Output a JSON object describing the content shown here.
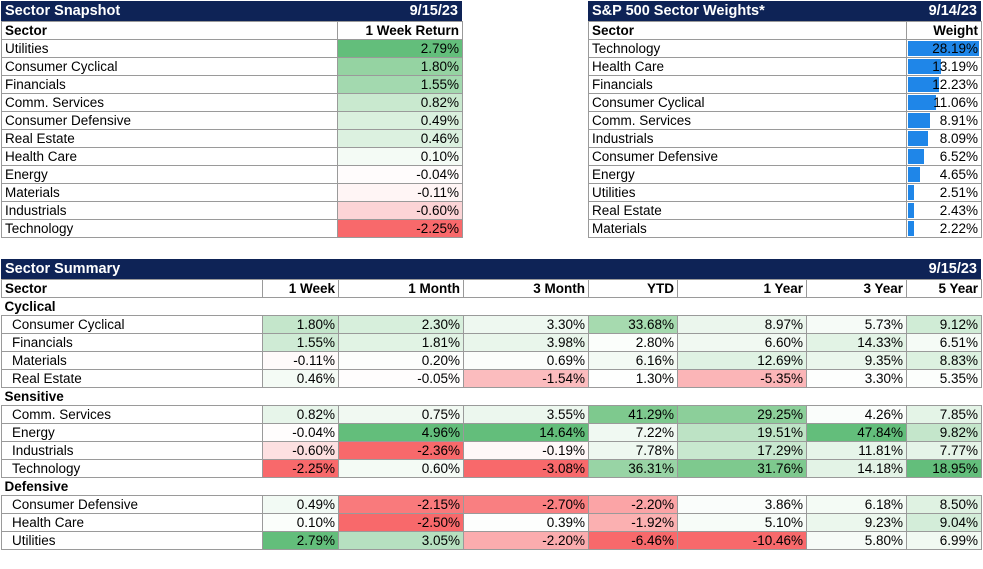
{
  "snapshot": {
    "title": "Sector Snapshot",
    "date": "9/15/23",
    "col_sector": "Sector",
    "col_return": "1 Week Return",
    "rows": [
      {
        "sector": "Utilities",
        "ret": "2.79%",
        "color": "#63be7b"
      },
      {
        "sector": "Consumer Cyclical",
        "ret": "1.80%",
        "color": "#95d3a2"
      },
      {
        "sector": "Financials",
        "ret": "1.55%",
        "color": "#a3d9af"
      },
      {
        "sector": "Comm. Services",
        "ret": "0.82%",
        "color": "#c9e9cf"
      },
      {
        "sector": "Consumer Defensive",
        "ret": "0.49%",
        "color": "#daf0de"
      },
      {
        "sector": "Real Estate",
        "ret": "0.46%",
        "color": "#dcf1e0"
      },
      {
        "sector": "Health Care",
        "ret": "0.10%",
        "color": "#f4fbf5"
      },
      {
        "sector": "Energy",
        "ret": "-0.04%",
        "color": "#fffcfc"
      },
      {
        "sector": "Materials",
        "ret": "-0.11%",
        "color": "#fff5f5"
      },
      {
        "sector": "Industrials",
        "ret": "-0.60%",
        "color": "#fcd4d6"
      },
      {
        "sector": "Technology",
        "ret": "-2.25%",
        "color": "#f8696b"
      }
    ]
  },
  "weights": {
    "title": "S&P 500 Sector Weights*",
    "date": "9/14/23",
    "col_sector": "Sector",
    "col_weight": "Weight",
    "bar_color": "#1f86e8",
    "rows": [
      {
        "sector": "Technology",
        "weight": "28.19%",
        "value": 28.19
      },
      {
        "sector": "Health Care",
        "weight": "13.19%",
        "value": 13.19
      },
      {
        "sector": "Financials",
        "weight": "12.23%",
        "value": 12.23
      },
      {
        "sector": "Consumer Cyclical",
        "weight": "11.06%",
        "value": 11.06
      },
      {
        "sector": "Comm. Services",
        "weight": "8.91%",
        "value": 8.91
      },
      {
        "sector": "Industrials",
        "weight": "8.09%",
        "value": 8.09
      },
      {
        "sector": "Consumer Defensive",
        "weight": "6.52%",
        "value": 6.52
      },
      {
        "sector": "Energy",
        "weight": "4.65%",
        "value": 4.65
      },
      {
        "sector": "Utilities",
        "weight": "2.51%",
        "value": 2.51
      },
      {
        "sector": "Real Estate",
        "weight": "2.43%",
        "value": 2.43
      },
      {
        "sector": "Materials",
        "weight": "2.22%",
        "value": 2.22
      }
    ]
  },
  "summary": {
    "title": "Sector Summary",
    "date": "9/15/23",
    "headers": [
      "Sector",
      "1 Week",
      "1 Month",
      "3 Month",
      "YTD",
      "1 Year",
      "3 Year",
      "5 Year"
    ],
    "groups": [
      {
        "name": "Cyclical",
        "rows": [
          {
            "sector": "Consumer Cyclical",
            "cells": [
              {
                "v": "1.80%",
                "c": "#c4e6cb"
              },
              {
                "v": "2.30%",
                "c": "#d7efdc"
              },
              {
                "v": "3.30%",
                "c": "#eef8f0"
              },
              {
                "v": "33.68%",
                "c": "#a6daaf"
              },
              {
                "v": "8.97%",
                "c": "#ebf6ed"
              },
              {
                "v": "5.73%",
                "c": "#f6fbf7"
              },
              {
                "v": "9.12%",
                "c": "#d0ecd6"
              }
            ]
          },
          {
            "sector": "Financials",
            "cells": [
              {
                "v": "1.55%",
                "c": "#cfebd5"
              },
              {
                "v": "1.81%",
                "c": "#e1f3e4"
              },
              {
                "v": "3.98%",
                "c": "#e9f6eb"
              },
              {
                "v": "2.80%",
                "c": "#fbfefb"
              },
              {
                "v": "6.60%",
                "c": "#f1f9f2"
              },
              {
                "v": "14.33%",
                "c": "#e2f3e5"
              },
              {
                "v": "6.51%",
                "c": "#f5fbf6"
              }
            ]
          },
          {
            "sector": "Materials",
            "cells": [
              {
                "v": "-0.11%",
                "c": "#fffafa"
              },
              {
                "v": "0.20%",
                "c": "#fcfefc"
              },
              {
                "v": "0.69%",
                "c": "#fbfdfb"
              },
              {
                "v": "6.16%",
                "c": "#f3faf4"
              },
              {
                "v": "12.69%",
                "c": "#dff2e3"
              },
              {
                "v": "9.35%",
                "c": "#eaf6ec"
              },
              {
                "v": "8.83%",
                "c": "#dcf1e0"
              }
            ]
          },
          {
            "sector": "Real Estate",
            "cells": [
              {
                "v": "0.46%",
                "c": "#f4fbf5"
              },
              {
                "v": "-0.05%",
                "c": "#fffdfd"
              },
              {
                "v": "-1.54%",
                "c": "#fbbcbe"
              },
              {
                "v": "1.30%",
                "c": "#fefffe"
              },
              {
                "v": "-5.35%",
                "c": "#fbb5b7"
              },
              {
                "v": "3.30%",
                "c": "#fdfefd"
              },
              {
                "v": "5.35%",
                "c": "#fcfefc"
              }
            ]
          }
        ]
      },
      {
        "name": "Sensitive",
        "rows": [
          {
            "sector": "Comm. Services",
            "cells": [
              {
                "v": "0.82%",
                "c": "#e7f5ea"
              },
              {
                "v": "0.75%",
                "c": "#f1f9f2"
              },
              {
                "v": "3.55%",
                "c": "#ecf7ee"
              },
              {
                "v": "41.29%",
                "c": "#7ec98e"
              },
              {
                "v": "29.25%",
                "c": "#8ccf9a"
              },
              {
                "v": "4.26%",
                "c": "#fafdfb"
              },
              {
                "v": "7.85%",
                "c": "#e4f4e7"
              }
            ]
          },
          {
            "sector": "Energy",
            "cells": [
              {
                "v": "-0.04%",
                "c": "#fffdfd"
              },
              {
                "v": "4.96%",
                "c": "#63be7b"
              },
              {
                "v": "14.64%",
                "c": "#63be7b"
              },
              {
                "v": "7.22%",
                "c": "#f0f9f2"
              },
              {
                "v": "19.51%",
                "c": "#bde3c5"
              },
              {
                "v": "47.84%",
                "c": "#63be7b"
              },
              {
                "v": "9.82%",
                "c": "#c4e6cb"
              }
            ]
          },
          {
            "sector": "Industrials",
            "cells": [
              {
                "v": "-0.60%",
                "c": "#fde0e1"
              },
              {
                "v": "-2.36%",
                "c": "#f8696b"
              },
              {
                "v": "-0.19%",
                "c": "#fff8f8"
              },
              {
                "v": "7.78%",
                "c": "#eef8f0"
              },
              {
                "v": "17.29%",
                "c": "#c8e8cf"
              },
              {
                "v": "11.81%",
                "c": "#e6f5e9"
              },
              {
                "v": "7.77%",
                "c": "#e5f4e8"
              }
            ]
          },
          {
            "sector": "Technology",
            "cells": [
              {
                "v": "-2.25%",
                "c": "#f8696b"
              },
              {
                "v": "0.60%",
                "c": "#f4fbf5"
              },
              {
                "v": "-3.08%",
                "c": "#f8696b"
              },
              {
                "v": "36.31%",
                "c": "#98d4a5"
              },
              {
                "v": "31.76%",
                "c": "#7ec98e"
              },
              {
                "v": "14.18%",
                "c": "#e3f3e6"
              },
              {
                "v": "18.95%",
                "c": "#63be7b"
              }
            ]
          }
        ]
      },
      {
        "name": "Defensive",
        "rows": [
          {
            "sector": "Consumer Defensive",
            "cells": [
              {
                "v": "0.49%",
                "c": "#f2faf4"
              },
              {
                "v": "-2.15%",
                "c": "#f97a7c"
              },
              {
                "v": "-2.70%",
                "c": "#f97f81"
              },
              {
                "v": "-2.20%",
                "c": "#fba4a6"
              },
              {
                "v": "3.86%",
                "c": "#fafdfb"
              },
              {
                "v": "6.18%",
                "c": "#f4fbf5"
              },
              {
                "v": "8.50%",
                "c": "#dff2e2"
              }
            ]
          },
          {
            "sector": "Health Care",
            "cells": [
              {
                "v": "0.10%",
                "c": "#fbfefb"
              },
              {
                "v": "-2.50%",
                "c": "#f8696b"
              },
              {
                "v": "0.39%",
                "c": "#fdfefd"
              },
              {
                "v": "-1.92%",
                "c": "#fbb0b1"
              },
              {
                "v": "5.10%",
                "c": "#f7fcf8"
              },
              {
                "v": "9.23%",
                "c": "#ebf7ed"
              },
              {
                "v": "9.04%",
                "c": "#d3edd9"
              }
            ]
          },
          {
            "sector": "Utilities",
            "cells": [
              {
                "v": "2.79%",
                "c": "#63be7b"
              },
              {
                "v": "3.05%",
                "c": "#b6e0c0"
              },
              {
                "v": "-2.20%",
                "c": "#fbacae"
              },
              {
                "v": "-6.46%",
                "c": "#f8696b"
              },
              {
                "v": "-10.46%",
                "c": "#f8696b"
              },
              {
                "v": "5.80%",
                "c": "#f6fbf7"
              },
              {
                "v": "6.99%",
                "c": "#f1f9f2"
              }
            ]
          }
        ]
      }
    ]
  }
}
